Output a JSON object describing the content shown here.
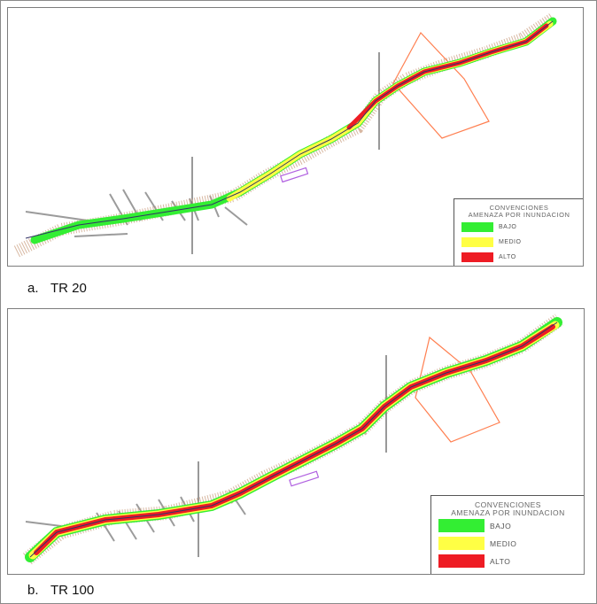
{
  "legend": {
    "title_line1": "CONVENCIONES",
    "title_line2": "AMENAZA POR INUNDACION",
    "items": [
      {
        "label": "BAJO",
        "color": "#33ee33"
      },
      {
        "label": "MEDIO",
        "color": "#ffff44"
      },
      {
        "label": "ALTO",
        "color": "#ee1c24"
      }
    ]
  },
  "panels": [
    {
      "letter": "a.",
      "caption": "TR 20"
    },
    {
      "letter": "b.",
      "caption": "TR 100"
    }
  ],
  "colors": {
    "section_lines": "#9b9b9b",
    "hatch": "#b08060",
    "river": "#333366",
    "zone_outline": "#ff7f50",
    "marker": "#b060e0"
  }
}
